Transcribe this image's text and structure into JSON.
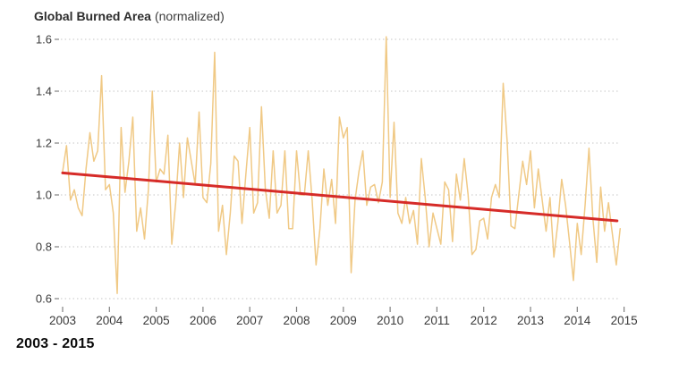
{
  "title": {
    "main": "Global Burned Area",
    "suffix": "(normalized)"
  },
  "footer": {
    "range_label": "2003 - 2015"
  },
  "colors": {
    "series_line": "#f0c985",
    "trend_line": "#d62b28",
    "gridline": "#c6c6c6",
    "tick": "#808080",
    "axis_text": "#3a3a3a",
    "title_text": "#2d2d2d",
    "background": "#ffffff"
  },
  "chart_data": {
    "type": "line",
    "title": "Global Burned Area (normalized)",
    "xlabel": "",
    "ylabel": "",
    "x_range_label": "2003 - 2015",
    "x_tick_labels": [
      "2003",
      "2004",
      "2005",
      "2006",
      "2007",
      "2008",
      "2009",
      "2010",
      "2011",
      "2012",
      "2013",
      "2014",
      "2015"
    ],
    "y_ticks": [
      1.6,
      1.4,
      1.2,
      1.0,
      0.8,
      0.6
    ],
    "y_tick_labels": [
      "1.6",
      "1.4",
      "1.2",
      "1.0",
      "0.8",
      "0.6"
    ],
    "ylim": [
      0.55,
      1.65
    ],
    "xlim": [
      2003,
      2015
    ],
    "grid": "horizontal dotted",
    "legend": "none",
    "series": [
      {
        "name": "Monthly global burned area (normalized)",
        "cadence": "monthly",
        "start": "2003-01",
        "end": "2014-12",
        "values": [
          1.09,
          1.19,
          0.98,
          1.02,
          0.95,
          0.92,
          1.1,
          1.24,
          1.13,
          1.17,
          1.46,
          1.02,
          1.04,
          0.93,
          0.62,
          1.26,
          1.01,
          1.13,
          1.3,
          0.86,
          0.95,
          0.83,
          1.02,
          1.4,
          1.05,
          1.1,
          1.08,
          1.23,
          0.81,
          0.97,
          1.2,
          0.99,
          1.22,
          1.13,
          1.04,
          1.32,
          0.99,
          0.97,
          1.12,
          1.55,
          0.86,
          0.96,
          0.77,
          0.93,
          1.15,
          1.13,
          0.89,
          1.08,
          1.26,
          0.93,
          0.97,
          1.34,
          1.02,
          0.91,
          1.17,
          0.93,
          0.96,
          1.17,
          0.87,
          0.87,
          1.17,
          1.0,
          1.0,
          1.17,
          0.98,
          0.73,
          0.87,
          1.1,
          0.96,
          1.06,
          0.89,
          1.3,
          1.22,
          1.26,
          0.7,
          0.98,
          1.09,
          1.17,
          0.96,
          1.03,
          1.04,
          0.97,
          1.05,
          1.61,
          0.99,
          1.28,
          0.93,
          0.89,
          0.99,
          0.89,
          0.94,
          0.81,
          1.14,
          0.99,
          0.8,
          0.93,
          0.87,
          0.81,
          1.05,
          1.02,
          0.82,
          1.08,
          0.98,
          1.14,
          1.0,
          0.77,
          0.79,
          0.9,
          0.91,
          0.83,
          0.99,
          1.04,
          0.99,
          1.43,
          1.21,
          0.88,
          0.87,
          1.0,
          1.13,
          1.04,
          1.17,
          0.95,
          1.1,
          0.98,
          0.86,
          0.99,
          0.76,
          0.89,
          1.06,
          0.96,
          0.82,
          0.67,
          0.89,
          0.77,
          0.96,
          1.18,
          0.91,
          0.74,
          1.03,
          0.86,
          0.97,
          0.85,
          0.73,
          0.87
        ]
      }
    ],
    "trend": {
      "name": "Linear trend",
      "value_start": 1.085,
      "value_end": 0.9,
      "x_start": 2003.0,
      "x_end": 2014.85
    }
  }
}
